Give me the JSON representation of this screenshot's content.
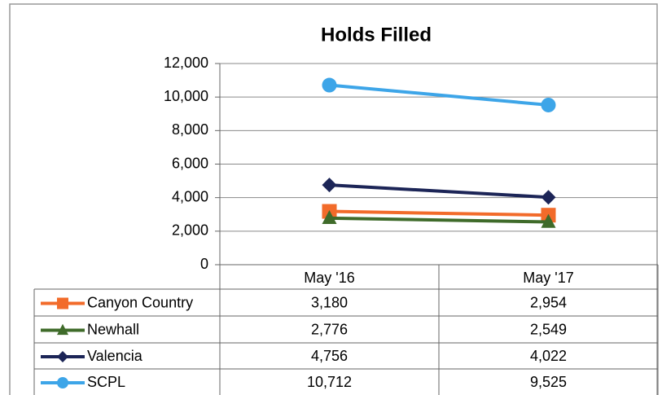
{
  "chart_data": {
    "type": "line",
    "title": "Holds Filled",
    "categories": [
      "May '16",
      "May '17"
    ],
    "series": [
      {
        "name": "Canyon Country",
        "color": "#f26b2a",
        "marker": "square",
        "values": [
          3180,
          2954
        ],
        "value_labels": [
          "3,180",
          "2,954"
        ]
      },
      {
        "name": "Newhall",
        "color": "#3f6b2a",
        "marker": "triangle",
        "values": [
          2776,
          2549
        ],
        "value_labels": [
          "2,776",
          "2,549"
        ]
      },
      {
        "name": "Valencia",
        "color": "#1c2557",
        "marker": "diamond",
        "values": [
          4756,
          4022
        ],
        "value_labels": [
          "4,756",
          "4,022"
        ]
      },
      {
        "name": "SCPL",
        "color": "#3da5e8",
        "marker": "circle",
        "values": [
          10712,
          9525
        ],
        "value_labels": [
          "10,712",
          "9,525"
        ]
      }
    ],
    "ylim": [
      0,
      12000
    ],
    "yticks": [
      0,
      {
        "value": 2000,
        "label": "2,000"
      },
      {
        "value": 4000,
        "label": "4,000"
      },
      {
        "value": 6000,
        "label": "6,000"
      },
      {
        "value": 8000,
        "label": "8,000"
      },
      {
        "value": 10000,
        "label": "10,000"
      },
      {
        "value": 12000,
        "label": "12,000"
      }
    ],
    "grid": true,
    "data_table": true
  }
}
